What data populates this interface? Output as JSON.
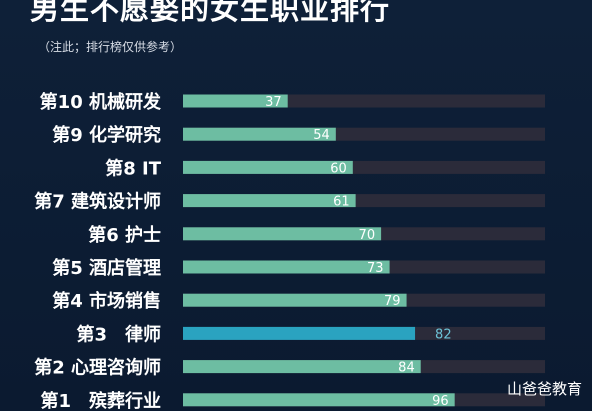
{
  "title": "男生不愿娶的女生职业排行",
  "subtitle": "（注此；排行榜仅供参考）",
  "watermark": "山爸爸教育",
  "colors": {
    "background": "#0c1c33",
    "bar_default": "#6dbda2",
    "bar_highlight": "#2aa3c0",
    "track": "#2b2b3a",
    "label_text": "#ffffff",
    "value_on_bar": "#ffffff",
    "value_highlight": "#6ec3d8"
  },
  "chart_data": {
    "type": "bar",
    "orientation": "horizontal",
    "categories": [
      "第10 机械研发",
      "第9 化学研究",
      "第8 IT",
      "第7 建筑设计师",
      "第6 护士",
      "第5 酒店管理",
      "第4 市场销售",
      "第3　律师",
      "第2 心理咨询师",
      "第1　殡葬行业"
    ],
    "values": [
      37,
      54,
      60,
      61,
      70,
      73,
      79,
      82,
      84,
      96
    ],
    "highlight_index": 7,
    "xlim": [
      0,
      100
    ],
    "grid": false,
    "title": "男生不愿娶的女生职业排行"
  }
}
